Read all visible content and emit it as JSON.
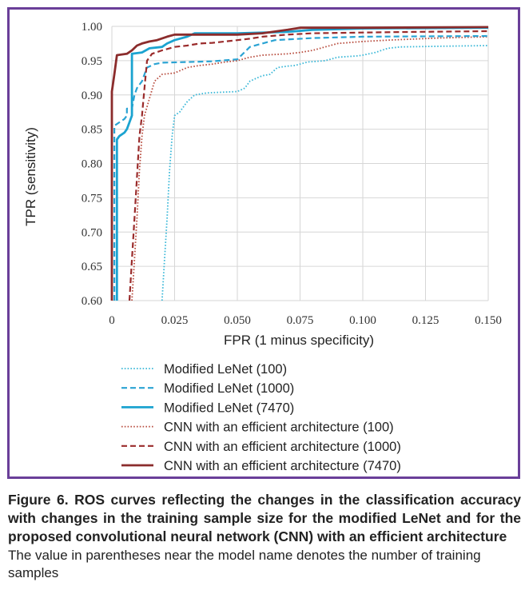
{
  "chart_data": {
    "type": "line",
    "xlabel": "FPR (1 minus specificity)",
    "ylabel": "TPR (sensitivity)",
    "xlim": [
      0,
      0.15
    ],
    "ylim": [
      0.6,
      1.0
    ],
    "x_ticks": [
      "0",
      "0.025",
      "0.050",
      "0.075",
      "0.100",
      "0.125",
      "0.150"
    ],
    "y_ticks": [
      "0.60",
      "0.65",
      "0.70",
      "0.75",
      "0.80",
      "0.85",
      "0.90",
      "0.95",
      "1.00"
    ],
    "grid": "horizontal and vertical",
    "legend_position": "bottom",
    "series": [
      {
        "name": "Modified LeNet (100)",
        "color": "#3bb8d8",
        "style": "dotted",
        "points": [
          [
            0.02,
            0.6
          ],
          [
            0.021,
            0.66
          ],
          [
            0.022,
            0.72
          ],
          [
            0.023,
            0.79
          ],
          [
            0.024,
            0.84
          ],
          [
            0.025,
            0.87
          ],
          [
            0.027,
            0.875
          ],
          [
            0.03,
            0.89
          ],
          [
            0.033,
            0.9
          ],
          [
            0.038,
            0.903
          ],
          [
            0.05,
            0.905
          ],
          [
            0.053,
            0.91
          ],
          [
            0.055,
            0.92
          ],
          [
            0.058,
            0.925
          ],
          [
            0.06,
            0.928
          ],
          [
            0.063,
            0.93
          ],
          [
            0.066,
            0.94
          ],
          [
            0.07,
            0.942
          ],
          [
            0.073,
            0.943
          ],
          [
            0.078,
            0.948
          ],
          [
            0.085,
            0.95
          ],
          [
            0.09,
            0.955
          ],
          [
            0.098,
            0.957
          ],
          [
            0.1,
            0.958
          ],
          [
            0.105,
            0.962
          ],
          [
            0.11,
            0.968
          ],
          [
            0.115,
            0.97
          ],
          [
            0.13,
            0.971
          ],
          [
            0.15,
            0.972
          ]
        ]
      },
      {
        "name": "Modified LeNet (1000)",
        "color": "#2aa3d3",
        "style": "dashed",
        "points": [
          [
            0.001,
            0.6
          ],
          [
            0.001,
            0.855
          ],
          [
            0.003,
            0.86
          ],
          [
            0.005,
            0.865
          ],
          [
            0.006,
            0.87
          ],
          [
            0.006,
            0.88
          ],
          [
            0.008,
            0.88
          ],
          [
            0.009,
            0.9
          ],
          [
            0.01,
            0.91
          ],
          [
            0.011,
            0.915
          ],
          [
            0.012,
            0.92
          ],
          [
            0.013,
            0.93
          ],
          [
            0.014,
            0.94
          ],
          [
            0.017,
            0.945
          ],
          [
            0.02,
            0.947
          ],
          [
            0.03,
            0.948
          ],
          [
            0.04,
            0.949
          ],
          [
            0.05,
            0.952
          ],
          [
            0.055,
            0.97
          ],
          [
            0.06,
            0.975
          ],
          [
            0.065,
            0.98
          ],
          [
            0.08,
            0.983
          ],
          [
            0.1,
            0.985
          ],
          [
            0.15,
            0.986
          ]
        ]
      },
      {
        "name": "Modified LeNet (7470)",
        "color": "#1ba3d0",
        "style": "solid",
        "points": [
          [
            0.002,
            0.6
          ],
          [
            0.002,
            0.835
          ],
          [
            0.003,
            0.84
          ],
          [
            0.005,
            0.845
          ],
          [
            0.006,
            0.85
          ],
          [
            0.007,
            0.86
          ],
          [
            0.008,
            0.87
          ],
          [
            0.008,
            0.96
          ],
          [
            0.012,
            0.962
          ],
          [
            0.015,
            0.968
          ],
          [
            0.02,
            0.97
          ],
          [
            0.022,
            0.975
          ],
          [
            0.025,
            0.98
          ],
          [
            0.03,
            0.985
          ],
          [
            0.033,
            0.99
          ],
          [
            0.05,
            0.99
          ],
          [
            0.07,
            0.992
          ],
          [
            0.08,
            0.995
          ],
          [
            0.1,
            0.997
          ],
          [
            0.15,
            0.998
          ]
        ]
      },
      {
        "name": "CNN with an efficient architecture (100)",
        "color": "#b84d3f",
        "style": "dotted",
        "points": [
          [
            0.008,
            0.6
          ],
          [
            0.009,
            0.66
          ],
          [
            0.01,
            0.72
          ],
          [
            0.011,
            0.79
          ],
          [
            0.012,
            0.84
          ],
          [
            0.013,
            0.87
          ],
          [
            0.015,
            0.895
          ],
          [
            0.017,
            0.92
          ],
          [
            0.02,
            0.93
          ],
          [
            0.025,
            0.932
          ],
          [
            0.03,
            0.94
          ],
          [
            0.035,
            0.943
          ],
          [
            0.04,
            0.945
          ],
          [
            0.045,
            0.948
          ],
          [
            0.05,
            0.95
          ],
          [
            0.055,
            0.955
          ],
          [
            0.06,
            0.958
          ],
          [
            0.07,
            0.96
          ],
          [
            0.075,
            0.962
          ],
          [
            0.08,
            0.965
          ],
          [
            0.085,
            0.97
          ],
          [
            0.09,
            0.975
          ],
          [
            0.1,
            0.978
          ],
          [
            0.11,
            0.98
          ],
          [
            0.13,
            0.983
          ],
          [
            0.15,
            0.985
          ]
        ]
      },
      {
        "name": "CNN with an efficient architecture (1000)",
        "color": "#9a2b2b",
        "style": "dashed",
        "points": [
          [
            0.007,
            0.6
          ],
          [
            0.008,
            0.66
          ],
          [
            0.009,
            0.72
          ],
          [
            0.01,
            0.78
          ],
          [
            0.011,
            0.84
          ],
          [
            0.012,
            0.87
          ],
          [
            0.013,
            0.91
          ],
          [
            0.014,
            0.95
          ],
          [
            0.016,
            0.96
          ],
          [
            0.02,
            0.965
          ],
          [
            0.025,
            0.97
          ],
          [
            0.03,
            0.972
          ],
          [
            0.035,
            0.975
          ],
          [
            0.04,
            0.976
          ],
          [
            0.045,
            0.978
          ],
          [
            0.05,
            0.98
          ],
          [
            0.055,
            0.982
          ],
          [
            0.06,
            0.985
          ],
          [
            0.07,
            0.988
          ],
          [
            0.08,
            0.99
          ],
          [
            0.1,
            0.991
          ],
          [
            0.12,
            0.992
          ],
          [
            0.15,
            0.993
          ]
        ]
      },
      {
        "name": "CNN with an efficient architecture (7470)",
        "color": "#8b2c2c",
        "style": "solid",
        "points": [
          [
            0,
            0.6
          ],
          [
            0,
            0.905
          ],
          [
            0.001,
            0.93
          ],
          [
            0.002,
            0.958
          ],
          [
            0.006,
            0.96
          ],
          [
            0.008,
            0.965
          ],
          [
            0.01,
            0.972
          ],
          [
            0.012,
            0.975
          ],
          [
            0.015,
            0.978
          ],
          [
            0.018,
            0.98
          ],
          [
            0.022,
            0.985
          ],
          [
            0.025,
            0.988
          ],
          [
            0.05,
            0.988
          ],
          [
            0.06,
            0.99
          ],
          [
            0.07,
            0.995
          ],
          [
            0.075,
            0.998
          ],
          [
            0.1,
            0.998
          ],
          [
            0.15,
            0.999
          ]
        ]
      }
    ]
  },
  "caption": {
    "title": "Figure 6. ROS curves reflecting the changes in the classification accuracy with changes in the training sample size for the modified LeNet and for the proposed convolutional neural network (CNN) with an efficient architecture",
    "note": "The value in parentheses near the model name denotes the number of training samples"
  }
}
